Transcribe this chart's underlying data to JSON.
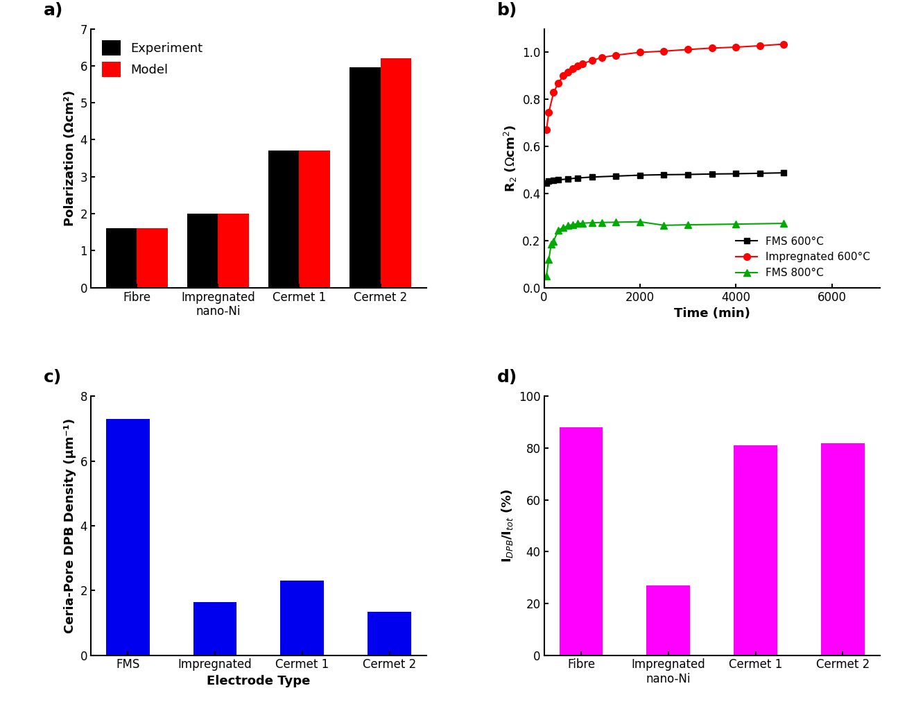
{
  "panel_a": {
    "categories": [
      "Fibre",
      "Impregnated\nnano-Ni",
      "Cermet 1",
      "Cermet 2"
    ],
    "experiment": [
      1.6,
      2.0,
      3.7,
      5.95
    ],
    "model": [
      1.6,
      2.0,
      3.7,
      6.2
    ],
    "bar_color_exp": "#000000",
    "bar_color_model": "#ff0000",
    "ylabel": "Polarization (Ωcm²)",
    "ylim": [
      0,
      7
    ],
    "yticks": [
      0,
      1,
      2,
      3,
      4,
      5,
      6,
      7
    ],
    "legend_labels": [
      "Experiment",
      "Model"
    ],
    "label": "a)"
  },
  "panel_b": {
    "fms600_time": [
      50,
      100,
      200,
      300,
      500,
      700,
      1000,
      1500,
      2000,
      2500,
      3000,
      3500,
      4000,
      4500,
      5000
    ],
    "fms600_r2": [
      0.445,
      0.452,
      0.455,
      0.458,
      0.462,
      0.466,
      0.47,
      0.474,
      0.478,
      0.48,
      0.481,
      0.483,
      0.484,
      0.486,
      0.488
    ],
    "imp600_time": [
      50,
      100,
      200,
      300,
      400,
      500,
      600,
      700,
      800,
      1000,
      1200,
      1500,
      2000,
      2500,
      3000,
      3500,
      4000,
      4500,
      5000
    ],
    "imp600_r2": [
      0.67,
      0.745,
      0.83,
      0.87,
      0.9,
      0.915,
      0.93,
      0.942,
      0.952,
      0.965,
      0.978,
      0.988,
      1.0,
      1.005,
      1.012,
      1.018,
      1.022,
      1.028,
      1.035
    ],
    "fms800_time": [
      50,
      100,
      150,
      200,
      300,
      400,
      500,
      600,
      700,
      800,
      1000,
      1200,
      1500,
      2000,
      2500,
      3000,
      4000,
      5000
    ],
    "fms800_r2": [
      0.05,
      0.12,
      0.185,
      0.198,
      0.245,
      0.255,
      0.263,
      0.268,
      0.272,
      0.274,
      0.276,
      0.277,
      0.278,
      0.28,
      0.265,
      0.267,
      0.27,
      0.273
    ],
    "xlabel": "Time (min)",
    "ylim": [
      0.0,
      1.1
    ],
    "yticks": [
      0.0,
      0.2,
      0.4,
      0.6,
      0.8,
      1.0
    ],
    "xlim": [
      0,
      7000
    ],
    "xticks": [
      0,
      2000,
      4000,
      6000
    ],
    "legend_labels": [
      "FMS 600°C",
      "Impregnated 600°C",
      "FMS 800°C"
    ],
    "colors": [
      "#000000",
      "#ff0000",
      "#00aa00"
    ],
    "markers": [
      "s",
      "o",
      "^"
    ],
    "label": "b)"
  },
  "panel_c": {
    "categories": [
      "FMS",
      "Impregnated",
      "Cermet 1",
      "Cermet 2"
    ],
    "values": [
      7.3,
      1.65,
      2.3,
      1.35
    ],
    "bar_color": "#0000ee",
    "ylabel": "Ceria-Pore DPB Density (μm⁻¹)",
    "xlabel": "Electrode Type",
    "ylim": [
      0,
      8
    ],
    "yticks": [
      0,
      2,
      4,
      6,
      8
    ],
    "label": "c)"
  },
  "panel_d": {
    "categories": [
      "Fibre",
      "Impregnated\nnano-Ni",
      "Cermet 1",
      "Cermet 2"
    ],
    "values": [
      88,
      27,
      81,
      82
    ],
    "bar_color": "#ff00ff",
    "ylim": [
      0,
      100
    ],
    "yticks": [
      0,
      20,
      40,
      60,
      80,
      100
    ],
    "label": "d)"
  },
  "background_color": "#ffffff",
  "font_size": 13,
  "label_font_size": 18,
  "tick_font_size": 12
}
